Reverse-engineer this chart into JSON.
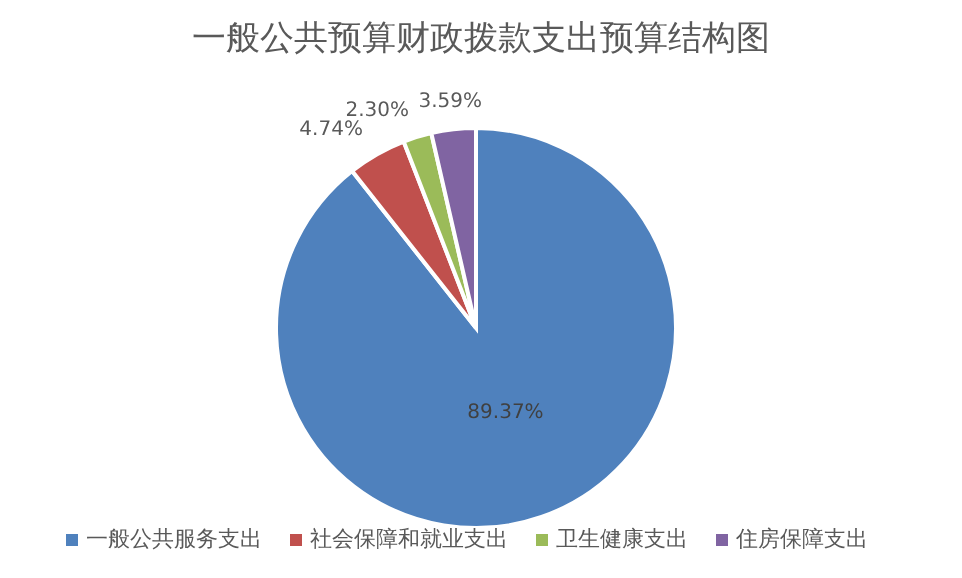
{
  "chart_data": {
    "type": "pie",
    "title": "一般公共预算财政拨款支出预算结构图",
    "categories": [
      "一般公共服务支出",
      "社会保障和就业支出",
      "卫生健康支出",
      "住房保障支出"
    ],
    "values": [
      89.37,
      4.74,
      2.3,
      3.59
    ],
    "value_labels": [
      "89.37%",
      "4.74%",
      "2.30%",
      "3.59%"
    ],
    "colors": [
      "#4f81bd",
      "#c0504d",
      "#9bbb59",
      "#8064a2"
    ],
    "legend": "bottom"
  }
}
